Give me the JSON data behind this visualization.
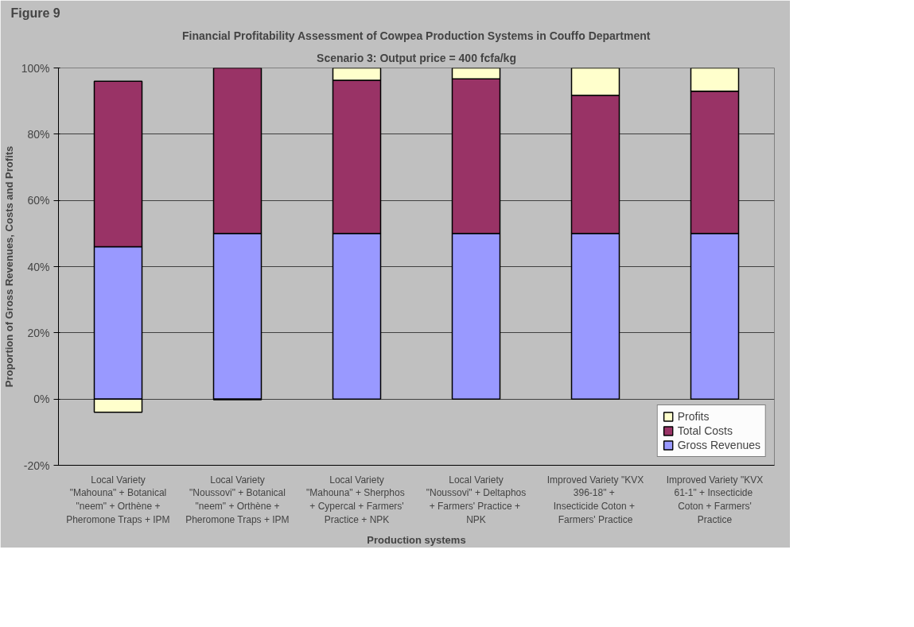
{
  "chart_data": {
    "type": "bar",
    "stacked": true,
    "title": "Financial Profitability Assessment of Cowpea Production Systems in Couffo Department",
    "subtitle": "Scenario 3: Output price = 400 fcfa/kg",
    "xlabel": "Production systems",
    "ylabel": "Proportion of Gross Revenues, Costs and Profits",
    "annotations": [
      "Figure 9"
    ],
    "categories": [
      "Local Variety \"Mahouna\" + Botanical \"neem\" + Orthène + Pheromone Traps + IPM",
      "Local Variety \"Noussovi\" + Botanical \"neem\" + Orthène + Pheromone Traps + IPM",
      "Local Variety \"Mahouna\"  + Sherphos + Cypercal + Farmers' Practice + NPK",
      "Local Variety \"Noussovi\" + Deltaphos +  Farmers' Practice + NPK",
      "Improved Variety \"KVX 396-18\"  +  Insecticide Coton  +  Farmers' Practice",
      "Improved Variety \"KVX 61-1\"  + Insecticide Coton + Farmers' Practice"
    ],
    "series": [
      {
        "name": "Gross Revenues",
        "color": "#9999ff",
        "values": [
          46,
          50,
          50,
          50,
          50,
          50
        ]
      },
      {
        "name": "Total Costs",
        "color": "#993366",
        "values": [
          50,
          50,
          46.3,
          46.7,
          41.7,
          43
        ]
      },
      {
        "name": "Profits",
        "color": "#ffffcc",
        "values": [
          -4,
          -0.2,
          3.7,
          3.3,
          8.3,
          7
        ]
      }
    ],
    "ylim": [
      -20,
      100
    ],
    "yticks": [
      {
        "value": -20,
        "label": "-20%"
      },
      {
        "value": 0,
        "label": "0%"
      },
      {
        "value": 20,
        "label": "20%"
      },
      {
        "value": 40,
        "label": "40%"
      },
      {
        "value": 60,
        "label": "60%"
      },
      {
        "value": 80,
        "label": "80%"
      },
      {
        "value": 100,
        "label": "100%"
      }
    ],
    "grid": "y",
    "legend": "bottom right"
  }
}
